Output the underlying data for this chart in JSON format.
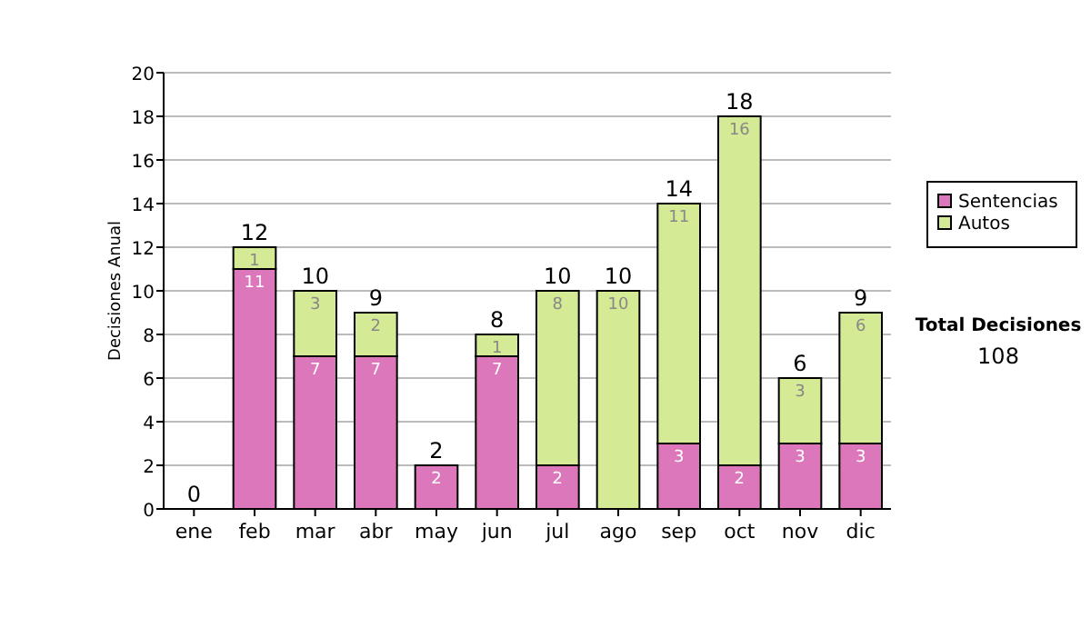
{
  "chart_data": {
    "type": "bar",
    "stacked": true,
    "ylabel": "Decisiones Anual",
    "categories": [
      "ene",
      "feb",
      "mar",
      "abr",
      "may",
      "jun",
      "jul",
      "ago",
      "sep",
      "oct",
      "nov",
      "dic"
    ],
    "series": [
      {
        "name": "Sentencias",
        "color": "#dd77bb",
        "values": [
          0,
          11,
          7,
          7,
          2,
          7,
          2,
          0,
          3,
          2,
          3,
          3
        ],
        "value_labels": [
          null,
          "11",
          "7",
          "7",
          "2",
          "7",
          "2",
          null,
          "3",
          "2",
          "3",
          "3"
        ]
      },
      {
        "name": "Autos",
        "color": "#d4ea94",
        "values": [
          0,
          1,
          3,
          2,
          0,
          1,
          8,
          10,
          11,
          16,
          3,
          6
        ],
        "value_labels": [
          null,
          "1",
          "3",
          "2",
          null,
          "1",
          "8",
          "10",
          "11",
          "16",
          "3",
          "6"
        ]
      }
    ],
    "totals": [
      "0",
      "12",
      "10",
      "9",
      "2",
      "8",
      "10",
      "10",
      "14",
      "18",
      "6",
      "9"
    ],
    "ylim": [
      0,
      20
    ],
    "yticks": [
      0,
      2,
      4,
      6,
      8,
      10,
      12,
      14,
      16,
      18,
      20
    ],
    "grid": "y",
    "legend": "right",
    "annotations": [
      "Total Decisiones",
      "108"
    ]
  }
}
